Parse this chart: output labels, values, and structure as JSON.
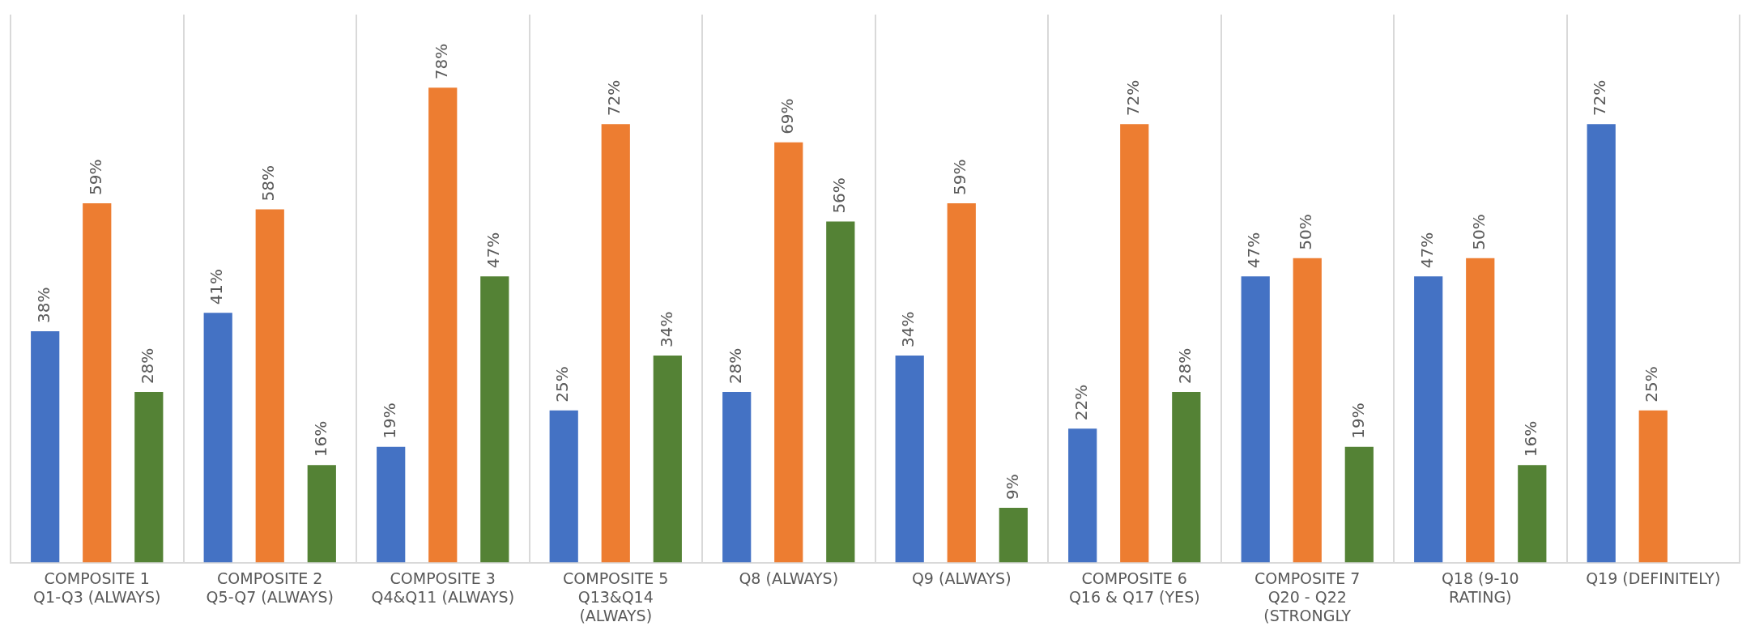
{
  "chart_data": {
    "type": "bar",
    "categories": [
      "COMPOSITE 1\nQ1-Q3 (ALWAYS)",
      "COMPOSITE 2\nQ5-Q7 (ALWAYS)",
      "COMPOSITE 3\nQ4&Q11 (ALWAYS)",
      "COMPOSITE 5\nQ13&Q14\n(ALWAYS)",
      "Q8 (ALWAYS)",
      "Q9 (ALWAYS)",
      "COMPOSITE 6\nQ16 & Q17 (YES)",
      "COMPOSITE 7\nQ20 - Q22\n(STRONGLY",
      "Q18 (9-10\nRATING)",
      "Q19 (DEFINITELY)"
    ],
    "series": [
      {
        "color": "#4472c4",
        "values": [
          38,
          41,
          19,
          25,
          28,
          34,
          22,
          47,
          47,
          72
        ],
        "value_labels": [
          "38%",
          "41%",
          "19%",
          "25%",
          "28%",
          "34%",
          "22%",
          "47%",
          "47%",
          "72%"
        ]
      },
      {
        "color": "#ed7d31",
        "values": [
          59,
          58,
          78,
          72,
          69,
          59,
          72,
          50,
          50,
          25
        ],
        "value_labels": [
          "59%",
          "58%",
          "78%",
          "72%",
          "69%",
          "59%",
          "72%",
          "50%",
          "50%",
          "25%"
        ]
      },
      {
        "color": "#548235",
        "values": [
          28,
          16,
          47,
          34,
          56,
          9,
          28,
          19,
          16,
          null
        ],
        "value_labels": [
          "28%",
          "16%",
          "47%",
          "34%",
          "56%",
          "9%",
          "28%",
          "19%",
          "16%",
          null
        ]
      }
    ],
    "ylim": [
      0,
      90
    ],
    "grid": "x",
    "legend": false,
    "tick_labels": "x"
  }
}
